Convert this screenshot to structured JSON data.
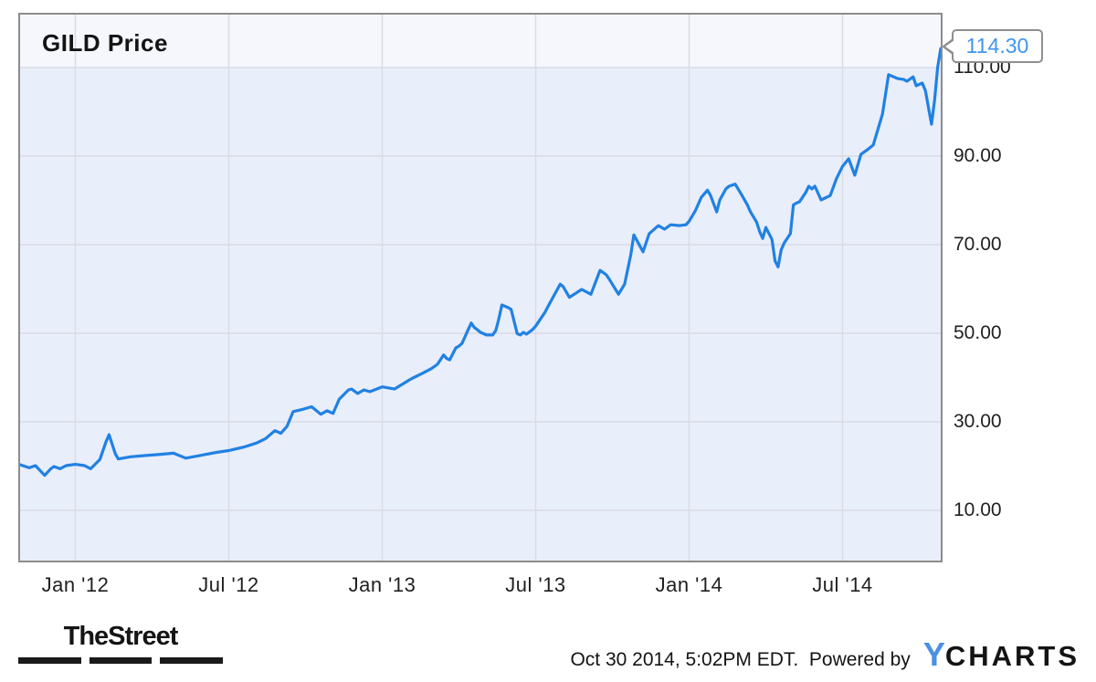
{
  "chart": {
    "title": "GILD Price",
    "price_callout": "114.30"
  },
  "footer": {
    "brand": "TheStreet",
    "timestamp": "Oct 30 2014, 5:02PM EDT.",
    "powered_by": "Powered by",
    "ycharts_y": "Y",
    "ycharts_charts": "CHARTS"
  },
  "colors": {
    "line": "#2181e2",
    "callout_text": "#4095ec",
    "plot_background": "#e9eefb",
    "title_band_background": "#f5f7fd",
    "gridline": "#d9dce3",
    "chart_border": "#8c8c8c",
    "axis_text": "#1f1f1f",
    "ycharts_blue": "#4a90e2"
  },
  "chart_data": {
    "type": "line",
    "title": "GILD Price",
    "grid": true,
    "legend_position": "none",
    "x_range": [
      2011.82,
      2014.82
    ],
    "x_ticks": [
      {
        "t": 2012.0,
        "label": "Jan '12"
      },
      {
        "t": 2012.5,
        "label": "Jul '12"
      },
      {
        "t": 2013.0,
        "label": "Jan '13"
      },
      {
        "t": 2013.5,
        "label": "Jul '13"
      },
      {
        "t": 2014.0,
        "label": "Jan '14"
      },
      {
        "t": 2014.5,
        "label": "Jul '14"
      }
    ],
    "y_ticks": [
      {
        "v": 110,
        "label": "110.00"
      },
      {
        "v": 90,
        "label": "90.00"
      },
      {
        "v": 70,
        "label": "70.00"
      },
      {
        "v": 50,
        "label": "50.00"
      },
      {
        "v": 30,
        "label": "30.00"
      },
      {
        "v": 10,
        "label": "10.00"
      }
    ],
    "last_value": 114.3,
    "series": [
      {
        "name": "GILD Price",
        "unit": "USD",
        "points": [
          [
            2011.82,
            20.3
          ],
          [
            2011.85,
            19.6
          ],
          [
            2011.87,
            20.1
          ],
          [
            2011.9,
            17.9
          ],
          [
            2011.92,
            19.4
          ],
          [
            2011.93,
            19.9
          ],
          [
            2011.95,
            19.4
          ],
          [
            2011.97,
            20.1
          ],
          [
            2012.0,
            20.4
          ],
          [
            2012.03,
            20.1
          ],
          [
            2012.05,
            19.4
          ],
          [
            2012.08,
            21.5
          ],
          [
            2012.1,
            25.5
          ],
          [
            2012.11,
            27.1
          ],
          [
            2012.13,
            22.8
          ],
          [
            2012.14,
            21.6
          ],
          [
            2012.18,
            22.1
          ],
          [
            2012.23,
            22.4
          ],
          [
            2012.27,
            22.6
          ],
          [
            2012.32,
            22.9
          ],
          [
            2012.36,
            21.8
          ],
          [
            2012.4,
            22.3
          ],
          [
            2012.46,
            23.1
          ],
          [
            2012.5,
            23.5
          ],
          [
            2012.55,
            24.3
          ],
          [
            2012.59,
            25.2
          ],
          [
            2012.62,
            26.2
          ],
          [
            2012.65,
            28.0
          ],
          [
            2012.67,
            27.4
          ],
          [
            2012.69,
            29.0
          ],
          [
            2012.71,
            32.3
          ],
          [
            2012.74,
            32.8
          ],
          [
            2012.77,
            33.4
          ],
          [
            2012.8,
            31.7
          ],
          [
            2012.82,
            32.5
          ],
          [
            2012.84,
            31.9
          ],
          [
            2012.86,
            35.1
          ],
          [
            2012.89,
            37.2
          ],
          [
            2012.9,
            37.4
          ],
          [
            2012.92,
            36.4
          ],
          [
            2012.94,
            37.2
          ],
          [
            2012.96,
            36.8
          ],
          [
            2013.0,
            37.9
          ],
          [
            2013.04,
            37.4
          ],
          [
            2013.09,
            39.5
          ],
          [
            2013.1,
            39.9
          ],
          [
            2013.13,
            40.9
          ],
          [
            2013.16,
            42.0
          ],
          [
            2013.18,
            43.0
          ],
          [
            2013.2,
            45.1
          ],
          [
            2013.21,
            44.3
          ],
          [
            2013.22,
            44.0
          ],
          [
            2013.24,
            46.7
          ],
          [
            2013.25,
            47.1
          ],
          [
            2013.26,
            47.7
          ],
          [
            2013.29,
            52.3
          ],
          [
            2013.3,
            51.3
          ],
          [
            2013.31,
            50.8
          ],
          [
            2013.32,
            50.2
          ],
          [
            2013.34,
            49.6
          ],
          [
            2013.36,
            49.6
          ],
          [
            2013.37,
            50.6
          ],
          [
            2013.38,
            53.3
          ],
          [
            2013.39,
            56.4
          ],
          [
            2013.41,
            55.8
          ],
          [
            2013.42,
            55.4
          ],
          [
            2013.44,
            49.9
          ],
          [
            2013.45,
            49.6
          ],
          [
            2013.46,
            50.2
          ],
          [
            2013.47,
            49.8
          ],
          [
            2013.49,
            50.8
          ],
          [
            2013.5,
            51.6
          ],
          [
            2013.53,
            54.7
          ],
          [
            2013.54,
            56.0
          ],
          [
            2013.58,
            61.1
          ],
          [
            2013.59,
            60.5
          ],
          [
            2013.61,
            58.1
          ],
          [
            2013.65,
            59.9
          ],
          [
            2013.68,
            58.8
          ],
          [
            2013.71,
            64.2
          ],
          [
            2013.73,
            63.2
          ],
          [
            2013.74,
            62.2
          ],
          [
            2013.77,
            58.8
          ],
          [
            2013.79,
            61.1
          ],
          [
            2013.81,
            67.7
          ],
          [
            2013.82,
            72.2
          ],
          [
            2013.85,
            68.4
          ],
          [
            2013.87,
            72.5
          ],
          [
            2013.9,
            74.3
          ],
          [
            2013.92,
            73.5
          ],
          [
            2013.94,
            74.5
          ],
          [
            2013.97,
            74.3
          ],
          [
            2013.99,
            74.5
          ],
          [
            2014.0,
            75.3
          ],
          [
            2014.02,
            77.6
          ],
          [
            2014.04,
            80.7
          ],
          [
            2014.06,
            82.3
          ],
          [
            2014.07,
            81.1
          ],
          [
            2014.09,
            77.4
          ],
          [
            2014.1,
            80.1
          ],
          [
            2014.12,
            82.6
          ],
          [
            2014.13,
            83.2
          ],
          [
            2014.15,
            83.7
          ],
          [
            2014.17,
            81.4
          ],
          [
            2014.19,
            79.0
          ],
          [
            2014.2,
            77.4
          ],
          [
            2014.22,
            75.1
          ],
          [
            2014.23,
            72.9
          ],
          [
            2014.24,
            71.4
          ],
          [
            2014.25,
            73.9
          ],
          [
            2014.27,
            71.2
          ],
          [
            2014.28,
            66.3
          ],
          [
            2014.29,
            65.0
          ],
          [
            2014.3,
            68.8
          ],
          [
            2014.31,
            70.4
          ],
          [
            2014.33,
            72.5
          ],
          [
            2014.34,
            79.0
          ],
          [
            2014.35,
            79.4
          ],
          [
            2014.36,
            79.7
          ],
          [
            2014.38,
            81.8
          ],
          [
            2014.39,
            83.2
          ],
          [
            2014.4,
            82.6
          ],
          [
            2014.41,
            83.2
          ],
          [
            2014.43,
            80.1
          ],
          [
            2014.46,
            81.1
          ],
          [
            2014.48,
            84.9
          ],
          [
            2014.5,
            87.7
          ],
          [
            2014.52,
            89.4
          ],
          [
            2014.54,
            85.7
          ],
          [
            2014.56,
            90.4
          ],
          [
            2014.58,
            91.4
          ],
          [
            2014.6,
            92.5
          ],
          [
            2014.63,
            99.5
          ],
          [
            2014.65,
            108.4
          ],
          [
            2014.68,
            107.5
          ],
          [
            2014.7,
            107.3
          ],
          [
            2014.71,
            106.9
          ],
          [
            2014.73,
            107.9
          ],
          [
            2014.74,
            105.9
          ],
          [
            2014.76,
            106.5
          ],
          [
            2014.77,
            104.8
          ],
          [
            2014.79,
            97.2
          ],
          [
            2014.8,
            102.7
          ],
          [
            2014.81,
            110.0
          ],
          [
            2014.82,
            114.3
          ]
        ]
      }
    ]
  }
}
